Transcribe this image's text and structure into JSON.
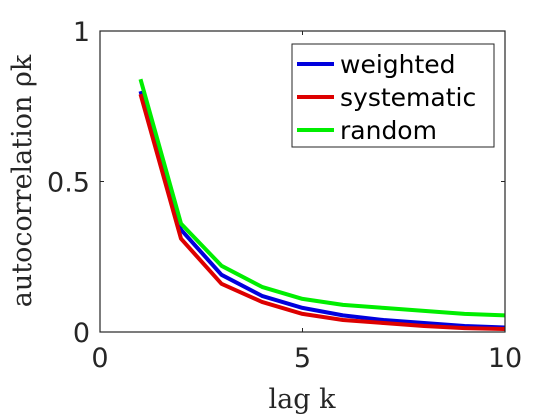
{
  "chart_data": {
    "type": "line",
    "xlabel": "lag k",
    "ylabel": "autocorrelation ρk",
    "xlim": [
      0,
      10
    ],
    "ylim": [
      0,
      1
    ],
    "xticks": [
      "0",
      "5",
      "10"
    ],
    "yticks": [
      "0",
      "0.5",
      "1"
    ],
    "legend_position": "top-right",
    "grid": false,
    "x": [
      1,
      2,
      3,
      4,
      5,
      6,
      7,
      8,
      9,
      10
    ],
    "series": [
      {
        "name": "weighted",
        "color": "#0000dd",
        "values": [
          0.8,
          0.34,
          0.19,
          0.12,
          0.08,
          0.055,
          0.04,
          0.03,
          0.02,
          0.015
        ]
      },
      {
        "name": "systematic",
        "color": "#dd0000",
        "values": [
          0.79,
          0.31,
          0.16,
          0.1,
          0.06,
          0.04,
          0.03,
          0.02,
          0.013,
          0.01
        ]
      },
      {
        "name": "random",
        "color": "#00ee00",
        "values": [
          0.84,
          0.36,
          0.22,
          0.15,
          0.11,
          0.09,
          0.08,
          0.07,
          0.06,
          0.055
        ]
      }
    ]
  }
}
